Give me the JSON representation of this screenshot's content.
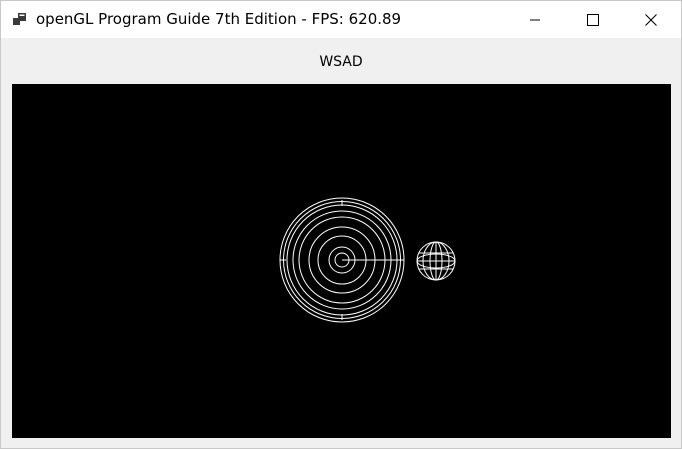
{
  "window": {
    "title": "openGL Program Guide 7th Edition - FPS: 620.89",
    "icon": "app-window-icon",
    "controls": {
      "minimize_icon": "minimize-icon",
      "maximize_icon": "maximize-icon",
      "close_icon": "close-icon"
    }
  },
  "content": {
    "label": "WSAD"
  },
  "canvas": {
    "background": "#000000",
    "stroke": "#ffffff",
    "sun_icon": "wireframe-sphere-large",
    "planet_icon": "wireframe-sphere-small"
  }
}
